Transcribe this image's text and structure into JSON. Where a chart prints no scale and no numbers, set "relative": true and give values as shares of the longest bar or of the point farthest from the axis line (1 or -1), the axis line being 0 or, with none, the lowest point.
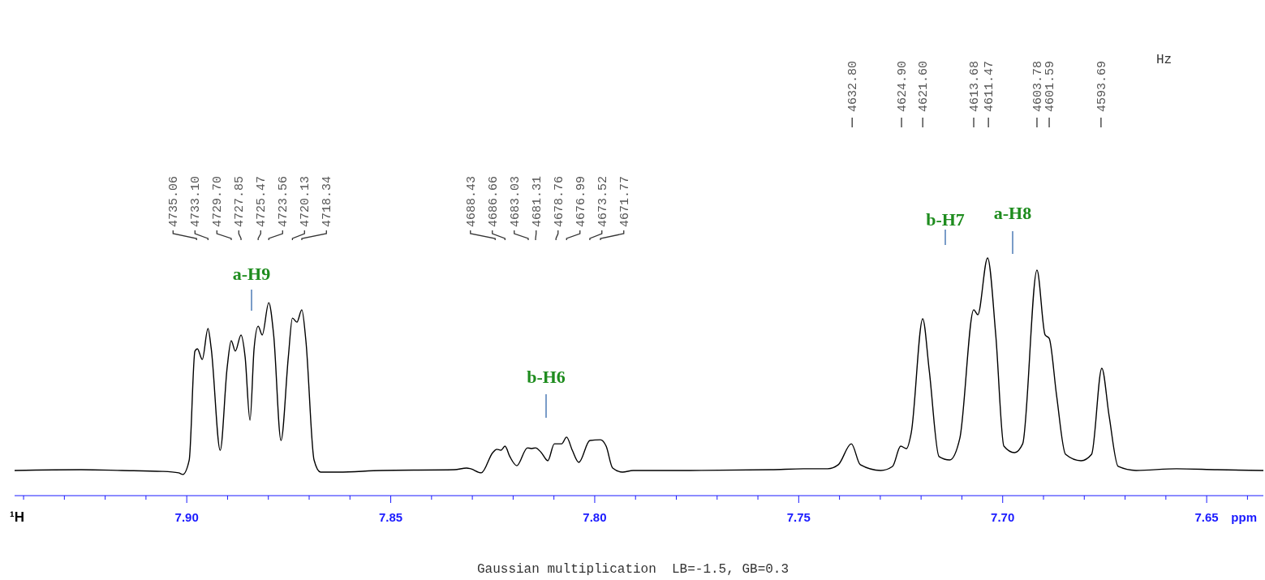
{
  "chart_data": {
    "type": "line",
    "relative": true,
    "xlabel": "ppm",
    "grid": false,
    "xlim": [
      7.9422,
      7.6361
    ],
    "xticks": [
      {
        "value": 7.94,
        "label": null
      },
      {
        "value": 7.93,
        "label": null
      },
      {
        "value": 7.92,
        "label": null
      },
      {
        "value": 7.91,
        "label": null
      },
      {
        "value": 7.9,
        "label": "7.90"
      },
      {
        "value": 7.89,
        "label": null
      },
      {
        "value": 7.88,
        "label": null
      },
      {
        "value": 7.87,
        "label": null
      },
      {
        "value": 7.86,
        "label": null
      },
      {
        "value": 7.85,
        "label": "7.85"
      },
      {
        "value": 7.84,
        "label": null
      },
      {
        "value": 7.83,
        "label": null
      },
      {
        "value": 7.82,
        "label": null
      },
      {
        "value": 7.81,
        "label": null
      },
      {
        "value": 7.8,
        "label": "7.80"
      },
      {
        "value": 7.79,
        "label": null
      },
      {
        "value": 7.78,
        "label": null
      },
      {
        "value": 7.77,
        "label": null
      },
      {
        "value": 7.76,
        "label": null
      },
      {
        "value": 7.75,
        "label": "7.75"
      },
      {
        "value": 7.74,
        "label": null
      },
      {
        "value": 7.73,
        "label": null
      },
      {
        "value": 7.72,
        "label": null
      },
      {
        "value": 7.71,
        "label": null
      },
      {
        "value": 7.7,
        "label": "7.70"
      },
      {
        "value": 7.69,
        "label": null
      },
      {
        "value": 7.68,
        "label": null
      },
      {
        "value": 7.67,
        "label": null
      },
      {
        "value": 7.66,
        "label": null
      },
      {
        "value": 7.65,
        "label": "7.65"
      },
      {
        "value": 7.64,
        "label": null
      }
    ],
    "series": [
      {
        "color": "#000000",
        "x": [
          7.9422,
          7.9259,
          7.9159,
          7.906,
          7.902,
          7.901,
          7.8994,
          7.898,
          7.8974,
          7.8962,
          7.8948,
          7.894,
          7.8918,
          7.8901,
          7.8891,
          7.8881,
          7.8867,
          7.8857,
          7.8845,
          7.8835,
          7.8825,
          7.8815,
          7.8799,
          7.8787,
          7.8769,
          7.8751,
          7.8741,
          7.873,
          7.8718,
          7.8708,
          7.8688,
          7.8672,
          7.8628,
          7.8523,
          7.8344,
          7.8314,
          7.8304,
          7.8278,
          7.825,
          7.824,
          7.823,
          7.822,
          7.8208,
          7.8191,
          7.8165,
          7.8155,
          7.8145,
          7.8131,
          7.8115,
          7.8099,
          7.8081,
          7.8069,
          7.8055,
          7.8039,
          7.8012,
          7.7986,
          7.7972,
          7.7956,
          7.7932,
          7.7906,
          7.7767,
          7.7568,
          7.7488,
          7.7429,
          7.7403,
          7.7371,
          7.7349,
          7.7299,
          7.727,
          7.725,
          7.7236,
          7.7224,
          7.7196,
          7.718,
          7.7156,
          7.713,
          7.7105,
          7.7071,
          7.7061,
          7.7037,
          7.7017,
          7.6997,
          7.6971,
          7.6951,
          7.6916,
          7.6896,
          7.6886,
          7.6868,
          7.6846,
          7.6808,
          7.6782,
          7.6757,
          7.6739,
          7.6717,
          7.6673,
          7.6574,
          7.6474,
          7.6361
        ],
        "values": [
          0.106,
          0.109,
          0.106,
          0.102,
          0.096,
          0.089,
          0.15,
          0.608,
          0.618,
          0.573,
          0.703,
          0.618,
          0.191,
          0.539,
          0.652,
          0.608,
          0.676,
          0.584,
          0.317,
          0.618,
          0.713,
          0.676,
          0.812,
          0.676,
          0.232,
          0.584,
          0.747,
          0.73,
          0.782,
          0.652,
          0.15,
          0.099,
          0.099,
          0.106,
          0.109,
          0.116,
          0.113,
          0.096,
          0.181,
          0.195,
          0.191,
          0.208,
          0.164,
          0.126,
          0.201,
          0.198,
          0.201,
          0.181,
          0.147,
          0.218,
          0.218,
          0.246,
          0.191,
          0.14,
          0.232,
          0.235,
          0.208,
          0.116,
          0.099,
          0.106,
          0.106,
          0.109,
          0.113,
          0.113,
          0.13,
          0.218,
          0.13,
          0.106,
          0.123,
          0.208,
          0.198,
          0.266,
          0.744,
          0.526,
          0.164,
          0.15,
          0.242,
          0.782,
          0.761,
          1.0,
          0.676,
          0.208,
          0.181,
          0.218,
          0.949,
          0.676,
          0.662,
          0.423,
          0.174,
          0.147,
          0.174,
          0.536,
          0.334,
          0.123,
          0.106,
          0.113,
          0.109,
          0.106
        ]
      }
    ],
    "annotations": [
      {
        "text": "4735.06",
        "x": 7.8976
      },
      {
        "text": "4733.10",
        "x": 7.8948
      },
      {
        "text": "4729.70",
        "x": 7.8891
      },
      {
        "text": "4727.85",
        "x": 7.8867
      },
      {
        "text": "4725.47",
        "x": 7.8825
      },
      {
        "text": "4723.56",
        "x": 7.8799
      },
      {
        "text": "4720.13",
        "x": 7.8741
      },
      {
        "text": "4718.34",
        "x": 7.8718
      },
      {
        "text": "4688.43",
        "x": 7.8244
      },
      {
        "text": "4686.66",
        "x": 7.822
      },
      {
        "text": "4683.03",
        "x": 7.8163
      },
      {
        "text": "4681.31",
        "x": 7.8145
      },
      {
        "text": "4678.76",
        "x": 7.8095
      },
      {
        "text": "4676.99",
        "x": 7.8069
      },
      {
        "text": "4673.52",
        "x": 7.8012
      },
      {
        "text": "4671.77",
        "x": 7.7986
      },
      {
        "text": "4632.80",
        "x": 7.7369
      },
      {
        "text": "4624.90",
        "x": 7.7248
      },
      {
        "text": "4621.60",
        "x": 7.7196
      },
      {
        "text": "4613.68",
        "x": 7.7071
      },
      {
        "text": "4611.47",
        "x": 7.7035
      },
      {
        "text": "4603.78",
        "x": 7.6916
      },
      {
        "text": "4601.59",
        "x": 7.6886
      },
      {
        "text": "4593.69",
        "x": 7.6759
      },
      "a-H9",
      "b-H6",
      "b-H7",
      "a-H8",
      "Hz",
      "¹H",
      "Gaussian multiplication  LB=-1.5, GB=0.3"
    ]
  }
}
